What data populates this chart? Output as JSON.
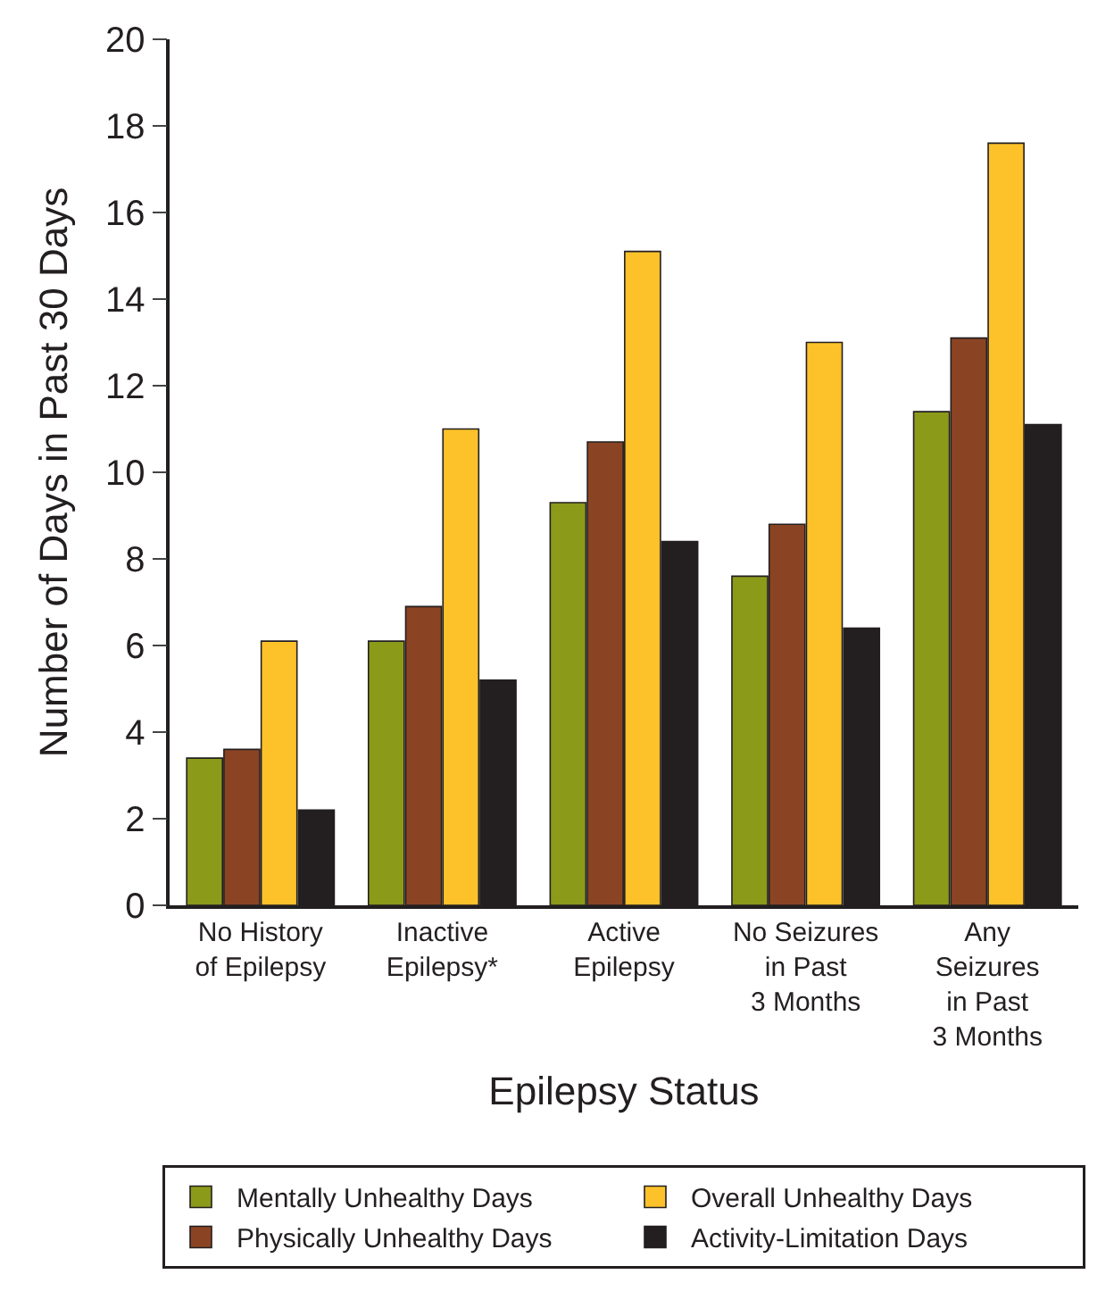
{
  "chart_data": {
    "type": "bar",
    "xlabel": "Epilepsy Status",
    "ylabel": "Number of Days in Past 30 Days",
    "categories": [
      "No History\nof Epilepsy",
      "Inactive\nEpilepsy*",
      "Active\nEpilepsy",
      "No Seizures\nin Past\n3 Months",
      "Any\nSeizures\nin Past\n3 Months"
    ],
    "series": [
      {
        "name": "Mentally Unhealthy Days",
        "color": "#8c9a1a",
        "values": [
          3.4,
          6.1,
          9.3,
          7.6,
          11.4
        ]
      },
      {
        "name": "Physically Unhealthy Days",
        "color": "#8b4423",
        "values": [
          3.6,
          6.9,
          10.7,
          8.8,
          13.1
        ]
      },
      {
        "name": "Overall Unhealthy Days",
        "color": "#fdc22a",
        "values": [
          6.1,
          11.0,
          15.1,
          13.0,
          17.6
        ]
      },
      {
        "name": "Activity-Limitation Days",
        "color": "#231f20",
        "values": [
          2.2,
          5.2,
          8.4,
          6.4,
          11.1
        ]
      }
    ],
    "ylim": [
      0,
      20
    ],
    "yticks": [
      0,
      2,
      4,
      6,
      8,
      10,
      12,
      14,
      16,
      18,
      20
    ],
    "legend": "bottom"
  }
}
